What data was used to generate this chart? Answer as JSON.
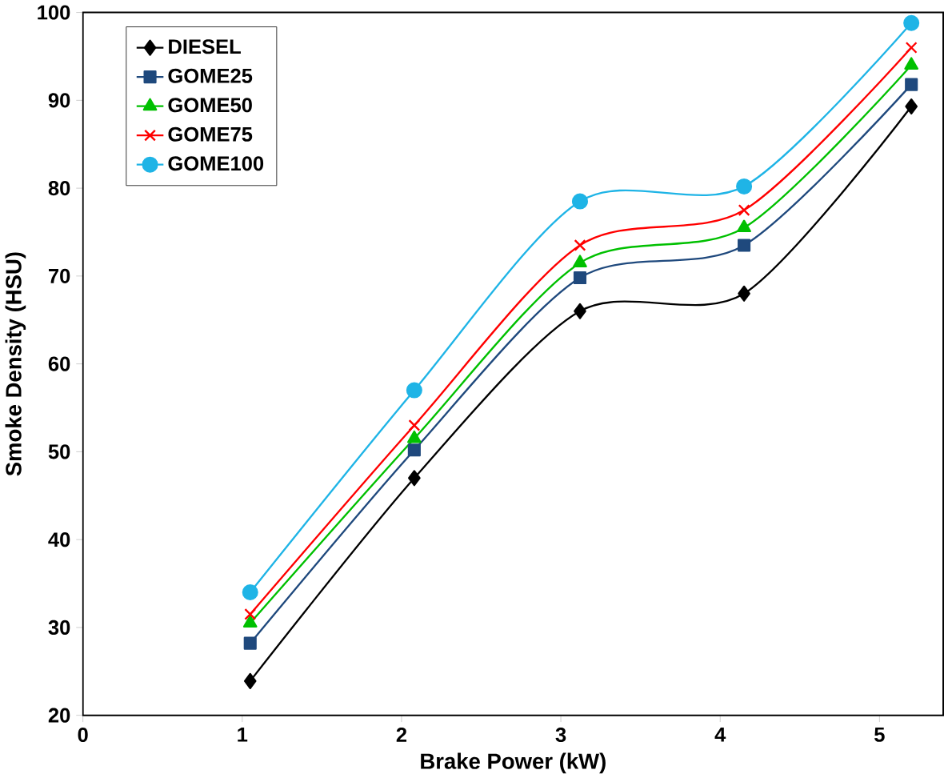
{
  "chart_data": {
    "type": "line",
    "xlabel": "Brake Power (kW)",
    "ylabel": "Smoke Density (HSU)",
    "x": [
      1.05,
      2.08,
      3.12,
      4.15,
      5.2
    ],
    "xlim": [
      0,
      5.4
    ],
    "xticks": [
      0,
      1,
      2,
      3,
      4,
      5
    ],
    "ylim": [
      20,
      100
    ],
    "yticks": [
      20,
      30,
      40,
      50,
      60,
      70,
      80,
      90,
      100
    ],
    "grid": false,
    "legend": "top left",
    "series": [
      {
        "name": "DIESEL",
        "color": "#000000",
        "marker": "diamond",
        "values": [
          23.9,
          47,
          66,
          68,
          89.3
        ]
      },
      {
        "name": "GOME25",
        "color": "#1f497d",
        "marker": "square",
        "values": [
          28.2,
          50.2,
          69.8,
          73.5,
          91.8
        ]
      },
      {
        "name": "GOME50",
        "color": "#00c000",
        "marker": "triangle",
        "values": [
          30.5,
          51.5,
          71.5,
          75.5,
          94
        ]
      },
      {
        "name": "GOME75",
        "color": "#ff0000",
        "marker": "cross",
        "values": [
          31.5,
          53,
          73.5,
          77.5,
          96
        ]
      },
      {
        "name": "GOME100",
        "color": "#1fb4e6",
        "marker": "circle",
        "values": [
          34,
          57,
          78.5,
          80.2,
          98.8
        ]
      }
    ]
  }
}
